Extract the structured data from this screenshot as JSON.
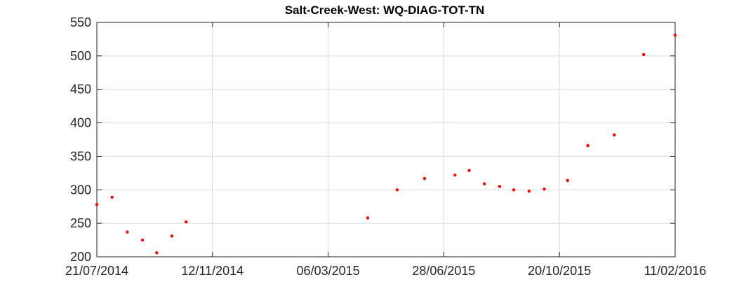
{
  "chart_data": {
    "type": "scatter",
    "title": "Salt-Creek-West: WQ-DIAG-TOT-TN",
    "xlabel": "",
    "ylabel": "",
    "x_ticks": [
      "21/07/2014",
      "12/11/2014",
      "06/03/2015",
      "28/06/2015",
      "20/10/2015",
      "11/02/2016"
    ],
    "xlim": [
      "21/07/2014",
      "11/02/2016"
    ],
    "ylim": [
      200,
      550
    ],
    "y_ticks": [
      200,
      250,
      300,
      350,
      400,
      450,
      500,
      550
    ],
    "grid": true,
    "marker_color": "#ff0000",
    "series": [
      {
        "points": [
          {
            "x": "21/07/2014",
            "y": 278
          },
          {
            "x": "05/08/2014",
            "y": 289
          },
          {
            "x": "20/08/2014",
            "y": 237
          },
          {
            "x": "04/09/2014",
            "y": 225
          },
          {
            "x": "18/09/2014",
            "y": 206
          },
          {
            "x": "03/10/2014",
            "y": 231
          },
          {
            "x": "17/10/2014",
            "y": 252
          },
          {
            "x": "14/04/2015",
            "y": 258
          },
          {
            "x": "13/05/2015",
            "y": 300
          },
          {
            "x": "09/06/2015",
            "y": 317
          },
          {
            "x": "09/07/2015",
            "y": 322
          },
          {
            "x": "23/07/2015",
            "y": 329
          },
          {
            "x": "07/08/2015",
            "y": 309
          },
          {
            "x": "22/08/2015",
            "y": 305
          },
          {
            "x": "05/09/2015",
            "y": 300
          },
          {
            "x": "20/09/2015",
            "y": 298
          },
          {
            "x": "05/10/2015",
            "y": 301
          },
          {
            "x": "28/10/2015",
            "y": 314
          },
          {
            "x": "17/11/2015",
            "y": 366
          },
          {
            "x": "13/12/2015",
            "y": 382
          },
          {
            "x": "11/01/2016",
            "y": 502
          },
          {
            "x": "11/02/2016",
            "y": 531
          }
        ]
      }
    ]
  }
}
